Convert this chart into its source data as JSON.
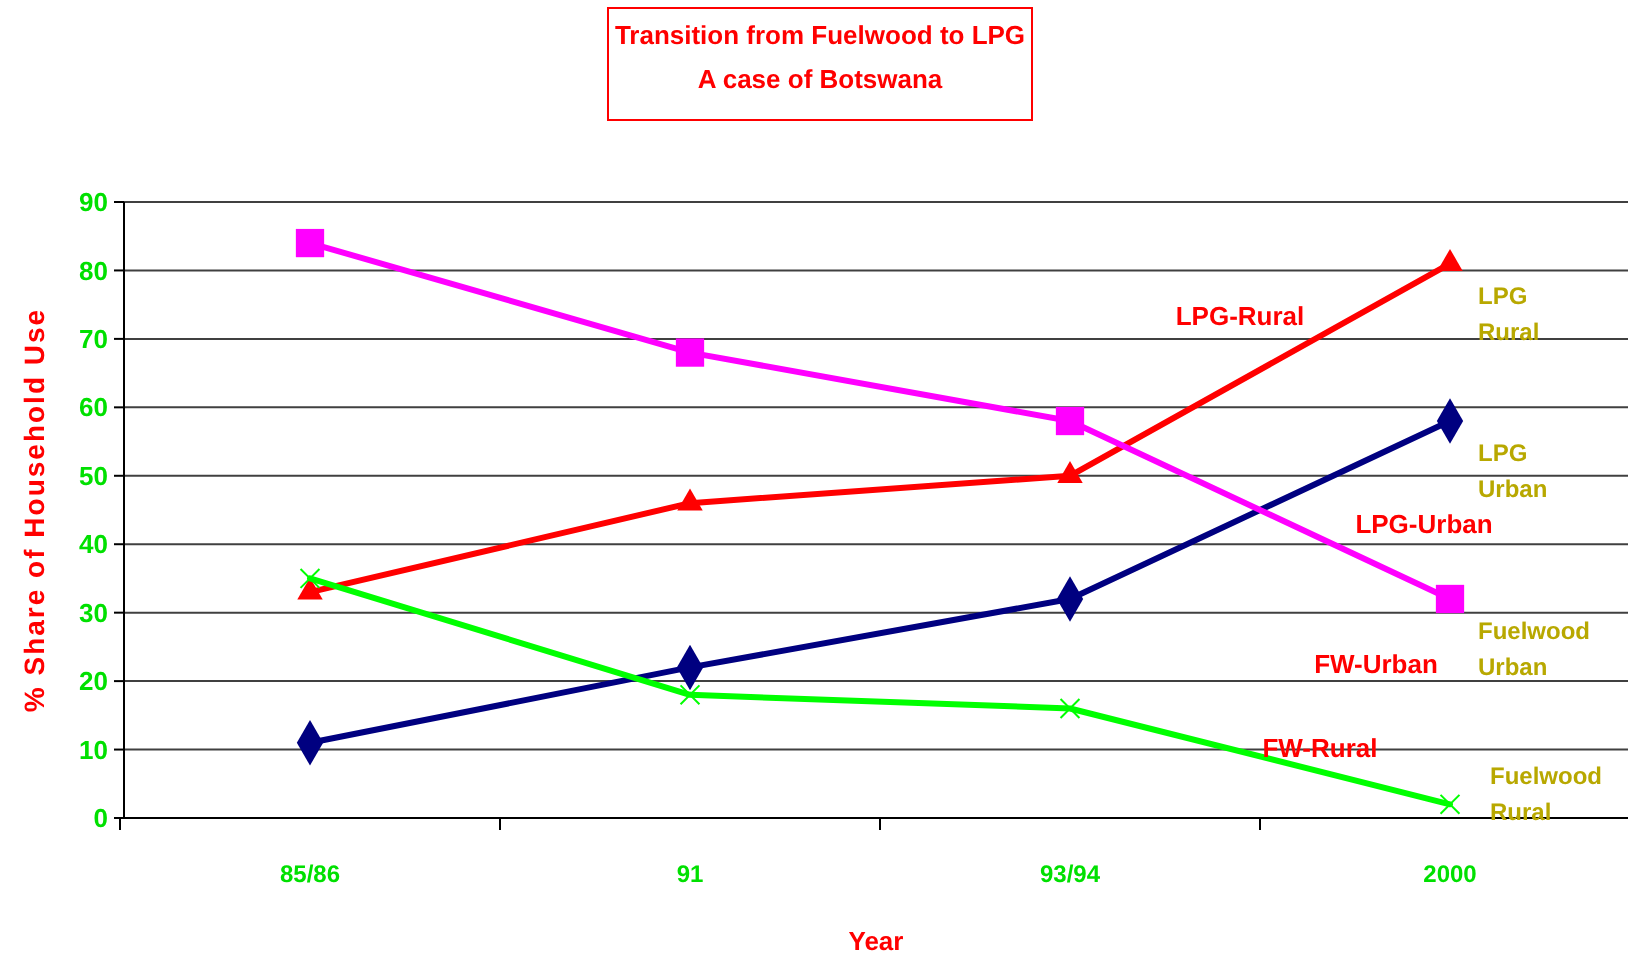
{
  "chart_data": {
    "type": "line",
    "title": "Transition from Fuelwood to LPG\nA case of Botswana",
    "xlabel": "Year",
    "ylabel": "% Share of Household Use",
    "categories": [
      "85/86",
      "91",
      "93/94",
      "2000"
    ],
    "series": [
      {
        "name": "LPG Rural",
        "color": "#ff0000",
        "marker": "triangle",
        "values": [
          33,
          46,
          50,
          81
        ]
      },
      {
        "name": "LPG Urban",
        "color": "#000080",
        "marker": "diamond",
        "values": [
          11,
          22,
          32,
          58
        ]
      },
      {
        "name": "Fuelwood Urban",
        "color": "#ff00ff",
        "marker": "square",
        "values": [
          84,
          68,
          58,
          32
        ]
      },
      {
        "name": "Fuelwood Rural",
        "color": "#00ff00",
        "marker": "cross",
        "values": [
          35,
          18,
          16,
          2
        ]
      }
    ],
    "annotations": [
      "LPG-Rural",
      "LPG-Urban",
      "FW-Urban",
      "FW-Rural"
    ],
    "ylim": [
      0,
      90
    ],
    "yticks": [
      0,
      10,
      20,
      30,
      40,
      50,
      60,
      70,
      80,
      90
    ],
    "grid": "y",
    "legend": "right"
  }
}
